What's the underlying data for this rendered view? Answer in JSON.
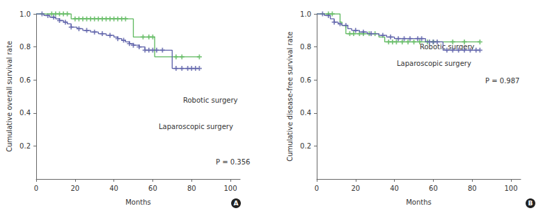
{
  "chart_data": [
    {
      "type": "line",
      "panel": "A",
      "x_label": "Months",
      "y_label": "Cumulative overall survival rate",
      "annotations": [
        "P = 0.356"
      ],
      "xlim": [
        0,
        105
      ],
      "xticks": [
        0,
        20,
        40,
        60,
        80,
        100
      ],
      "ylim": [
        0,
        1
      ],
      "yticks": [
        0.2,
        0.4,
        0.6,
        0.8,
        {
          "value": 1,
          "label": "1.0"
        }
      ],
      "grid": false,
      "line_style": "step",
      "series": [
        {
          "name": "Robotic surgery",
          "color": "#5cb85c",
          "marker": "cross",
          "x": [
            0,
            18,
            50,
            61,
            84
          ],
          "values": [
            1,
            0.97,
            0.86,
            0.74,
            0.74
          ],
          "censored": [
            8,
            10,
            12,
            14,
            16,
            20,
            22,
            24,
            26,
            28,
            30,
            32,
            34,
            36,
            38,
            40,
            42,
            44,
            46,
            55,
            58,
            60,
            72,
            75,
            84
          ]
        },
        {
          "name": "Laparoscopic surgery",
          "color": "#5b5fa8",
          "marker": "cross",
          "x": [
            0,
            4,
            7,
            10,
            12,
            14,
            16,
            18,
            21,
            24,
            28,
            32,
            36,
            40,
            42,
            44,
            46,
            48,
            50,
            53,
            56,
            70,
            84
          ],
          "values": [
            1,
            0.99,
            0.98,
            0.97,
            0.96,
            0.95,
            0.94,
            0.92,
            0.91,
            0.9,
            0.89,
            0.88,
            0.87,
            0.86,
            0.85,
            0.84,
            0.83,
            0.82,
            0.81,
            0.8,
            0.78,
            0.67,
            0.67
          ],
          "censored": [
            3,
            6,
            9,
            12,
            15,
            18,
            22,
            26,
            30,
            34,
            38,
            42,
            45,
            48,
            50,
            53,
            56,
            58,
            60,
            62,
            65,
            72,
            75,
            78,
            80,
            82,
            84
          ]
        }
      ]
    },
    {
      "type": "line",
      "panel": "B",
      "x_label": "Months",
      "y_label": "Cumulative disease-free survival rate",
      "annotations": [
        "P = 0.987"
      ],
      "xlim": [
        0,
        105
      ],
      "xticks": [
        0,
        20,
        40,
        60,
        80,
        100
      ],
      "ylim": [
        0,
        1
      ],
      "yticks": [
        0.2,
        0.4,
        0.6,
        0.8,
        {
          "value": 1,
          "label": "1.0"
        }
      ],
      "grid": false,
      "line_style": "step",
      "series": [
        {
          "name": "Robotic surgery",
          "color": "#5cb85c",
          "marker": "cross",
          "x": [
            0,
            12,
            13,
            15,
            32,
            35,
            84
          ],
          "values": [
            1,
            0.95,
            0.93,
            0.88,
            0.86,
            0.83,
            0.83
          ],
          "censored": [
            6,
            8,
            17,
            19,
            22,
            24,
            27,
            30,
            37,
            39,
            41,
            44,
            47,
            50,
            53,
            57,
            60,
            70,
            76,
            84
          ]
        },
        {
          "name": "Laparoscopic surgery",
          "color": "#5b5fa8",
          "marker": "cross",
          "x": [
            0,
            4,
            7,
            9,
            11,
            13,
            16,
            18,
            22,
            26,
            32,
            36,
            40,
            56,
            65,
            84
          ],
          "values": [
            1,
            0.99,
            0.97,
            0.95,
            0.94,
            0.93,
            0.91,
            0.9,
            0.89,
            0.88,
            0.87,
            0.86,
            0.85,
            0.83,
            0.78,
            0.78
          ],
          "censored": [
            3,
            6,
            9,
            12,
            15,
            20,
            24,
            28,
            34,
            38,
            42,
            45,
            48,
            52,
            54,
            58,
            60,
            62,
            67,
            70,
            73,
            76,
            79,
            82,
            84
          ]
        }
      ]
    }
  ]
}
